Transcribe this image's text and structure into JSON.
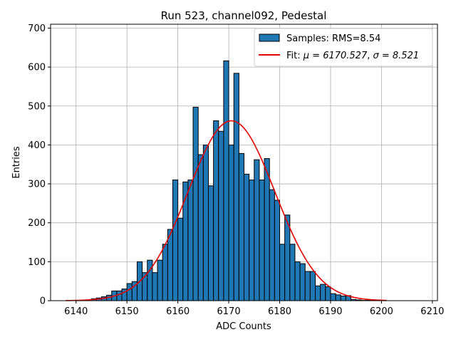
{
  "chart_data": {
    "type": "bar",
    "title": "Run 523, channel092, Pedestal",
    "xlabel": "ADC Counts",
    "ylabel": "Entries",
    "xlim": [
      6135,
      6211
    ],
    "ylim": [
      0,
      710
    ],
    "xticks": [
      6140,
      6150,
      6160,
      6170,
      6180,
      6190,
      6200,
      6210
    ],
    "yticks": [
      0,
      100,
      200,
      300,
      400,
      500,
      600,
      700
    ],
    "grid": true,
    "legend_position": "upper right",
    "histogram": {
      "name": "Samples: RMS=8.54",
      "color": "#1f77b4",
      "edgecolor": "#000000",
      "bin_width": 1,
      "bin_start": [
        6143,
        6144,
        6145,
        6146,
        6147,
        6148,
        6149,
        6150,
        6151,
        6152,
        6153,
        6154,
        6155,
        6156,
        6157,
        6158,
        6159,
        6160,
        6161,
        6162,
        6163,
        6164,
        6165,
        6166,
        6167,
        6168,
        6169,
        6170,
        6171,
        6172,
        6173,
        6174,
        6175,
        6176,
        6177,
        6178,
        6179,
        6180,
        6181,
        6182,
        6183,
        6184,
        6185,
        6186,
        6187,
        6188,
        6189,
        6190,
        6191,
        6192,
        6193,
        6194,
        6195,
        6196,
        6197
      ],
      "counts": [
        5,
        7,
        10,
        14,
        25,
        25,
        30,
        44,
        49,
        100,
        72,
        104,
        72,
        104,
        145,
        183,
        310,
        212,
        305,
        310,
        497,
        375,
        400,
        295,
        462,
        435,
        616,
        400,
        584,
        378,
        325,
        310,
        362,
        310,
        365,
        285,
        258,
        145,
        220,
        145,
        100,
        95,
        75,
        75,
        38,
        42,
        36,
        18,
        15,
        12,
        13,
        3,
        2,
        1,
        1
      ]
    },
    "fit": {
      "name": "Fit: μ = 6170.527, σ = 8.521",
      "label_prefix": "Fit: ",
      "mu_label": "μ = 6170.527",
      "sigma_label": "σ = 8.521",
      "color": "#e50000",
      "mu": 6170.527,
      "sigma": 8.521,
      "amplitude": 462,
      "x_range": [
        6138,
        6201
      ]
    }
  }
}
